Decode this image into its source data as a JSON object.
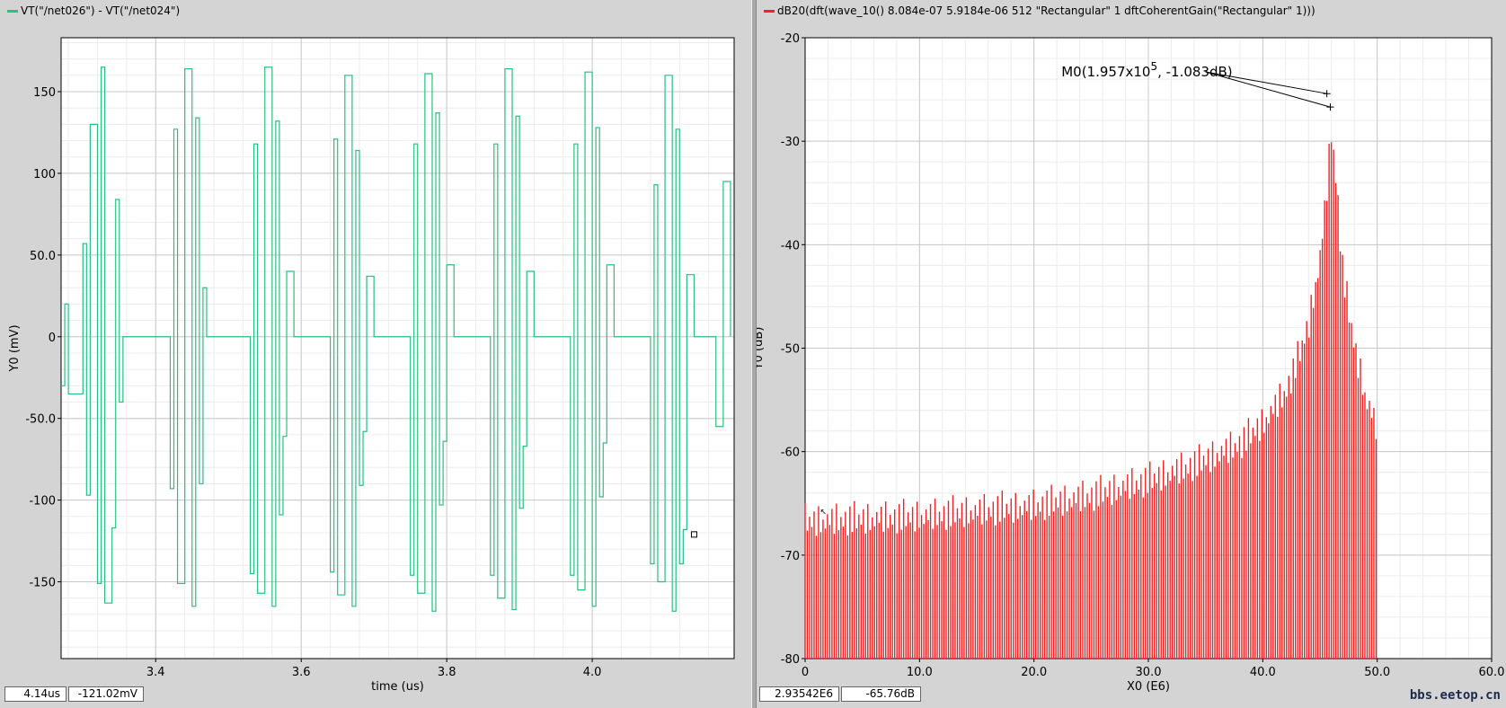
{
  "colors": {
    "left_trace": "#25c27f",
    "right_trace": "#ee2222"
  },
  "left": {
    "legend": "VT(\"/net026\") - VT(\"/net024\")",
    "readout": {
      "x": "4.14us",
      "y": "-121.02mV"
    }
  },
  "right": {
    "legend": "dB20(dft(wave_10() 8.084e-07 5.9184e-06 512 \"Rectangular\" 1 dftCoherentGain(\"Rectangular\" 1)))",
    "readout": {
      "x": "2.93542E6",
      "y": "-65.76dB"
    },
    "marker_label": {
      "prefix": "M0(1.957x10",
      "exp": "5",
      "suffix": ", -1.083dB)"
    }
  },
  "watermark": "bbs.eetop.cn",
  "chart_data": [
    {
      "type": "line",
      "xlabel": "time (us)",
      "ylabel": "Y0 (mV)",
      "xlim": [
        3.27,
        4.195
      ],
      "ylim": [
        -197,
        183
      ],
      "xticks": [
        3.4,
        3.6,
        3.8,
        4.0
      ],
      "xtick_labels": [
        "3.4",
        "3.6",
        "3.8",
        "4.0"
      ],
      "yticks": [
        150,
        100,
        50,
        0,
        -50,
        -100,
        -150
      ],
      "ytick_labels": [
        "150",
        "100",
        "50.0",
        "0",
        "-50.0",
        "-100",
        "-150"
      ],
      "grid": true,
      "series": [
        {
          "x": [
            3.27,
            3.275,
            3.28,
            3.3,
            3.305,
            3.31,
            3.32,
            3.325,
            3.33,
            3.34,
            3.345,
            3.35,
            3.355,
            3.36,
            3.37,
            3.38,
            3.385,
            3.39,
            3.4,
            3.41,
            3.42,
            3.425,
            3.43,
            3.44,
            3.45,
            3.455,
            3.46,
            3.465,
            3.47,
            3.48,
            3.49,
            3.5,
            3.51,
            3.52,
            3.53,
            3.535,
            3.54,
            3.55,
            3.56,
            3.565,
            3.57,
            3.575,
            3.58,
            3.59,
            3.6,
            3.61,
            3.62,
            3.63,
            3.64,
            3.645,
            3.65,
            3.66,
            3.67,
            3.675,
            3.68,
            3.685,
            3.69,
            3.7,
            3.71,
            3.72,
            3.73,
            3.74,
            3.75,
            3.755,
            3.76,
            3.77,
            3.78,
            3.785,
            3.79,
            3.795,
            3.8,
            3.81,
            3.82,
            3.83,
            3.84,
            3.85,
            3.86,
            3.865,
            3.87,
            3.88,
            3.89,
            3.895,
            3.9,
            3.905,
            3.91,
            3.92,
            3.93,
            3.94,
            3.95,
            3.96,
            3.97,
            3.975,
            3.98,
            3.99,
            4.0,
            4.005,
            4.01,
            4.015,
            4.02,
            4.03,
            4.04,
            4.05,
            4.06,
            4.07,
            4.08,
            4.085,
            4.09,
            4.1,
            4.11,
            4.115,
            4.12,
            4.125,
            4.13,
            4.14,
            4.15,
            4.16,
            4.17,
            4.18,
            4.19
          ],
          "y": [
            -30,
            20,
            -35,
            57,
            -97,
            130,
            -151,
            165,
            -163,
            -117,
            84,
            -40,
            0,
            0,
            0,
            0,
            0,
            0,
            0,
            0,
            -93,
            127,
            -151,
            164,
            -165,
            134,
            -90,
            30,
            0,
            0,
            0,
            0,
            0,
            0,
            -145,
            118,
            -157,
            165,
            -165,
            132,
            -109,
            -61,
            40,
            0,
            0,
            0,
            0,
            0,
            -144,
            121,
            -158,
            160,
            -165,
            114,
            -91,
            -58,
            37,
            0,
            0,
            0,
            0,
            0,
            -146,
            118,
            -157,
            161,
            -168,
            137,
            -103,
            -64,
            44,
            0,
            0,
            0,
            0,
            0,
            -146,
            118,
            -160,
            164,
            -167,
            135,
            -105,
            -67,
            40,
            0,
            0,
            0,
            0,
            0,
            -146,
            118,
            -155,
            162,
            -165,
            128,
            -98,
            -65,
            44,
            0,
            0,
            0,
            0,
            0,
            -139,
            93,
            -150,
            160,
            -168,
            127,
            -139,
            -118,
            38,
            0,
            0,
            0,
            -55,
            95,
            0
          ]
        }
      ]
    },
    {
      "type": "bar",
      "xlabel": "X0 (E6)",
      "ylabel": "Y0 (dB)",
      "xlim": [
        0,
        60
      ],
      "ylim": [
        -80,
        -20
      ],
      "xticks": [
        0,
        10,
        20,
        30,
        40,
        50,
        60
      ],
      "xtick_labels": [
        "0",
        "10.0",
        "20.0",
        "30.0",
        "40.0",
        "50.0",
        "60.0"
      ],
      "yticks": [
        -20,
        -30,
        -40,
        -50,
        -60,
        -70,
        -80
      ],
      "ytick_labels": [
        "-20",
        "-30",
        "-40",
        "-50",
        "-60",
        "-70",
        "-80"
      ],
      "grid": true,
      "bar_spacing_E6": 0.1957,
      "bar_count": 256,
      "envelope": {
        "x": [
          0,
          10,
          20,
          25,
          30,
          34,
          38,
          40,
          42,
          43,
          44,
          45,
          45.5,
          45.8,
          46,
          46.5,
          47,
          48,
          49,
          50
        ],
        "y": [
          -65,
          -64.5,
          -63.5,
          -62.5,
          -61,
          -59.5,
          -57.5,
          -55.5,
          -52.5,
          -49.5,
          -46,
          -39.5,
          -34,
          -30,
          -27.2,
          -33,
          -41,
          -48,
          -53,
          -56
        ]
      },
      "marker": {
        "x": 45.6,
        "y": -25.4,
        "x2": 45.9,
        "y2": -26.7
      }
    }
  ]
}
